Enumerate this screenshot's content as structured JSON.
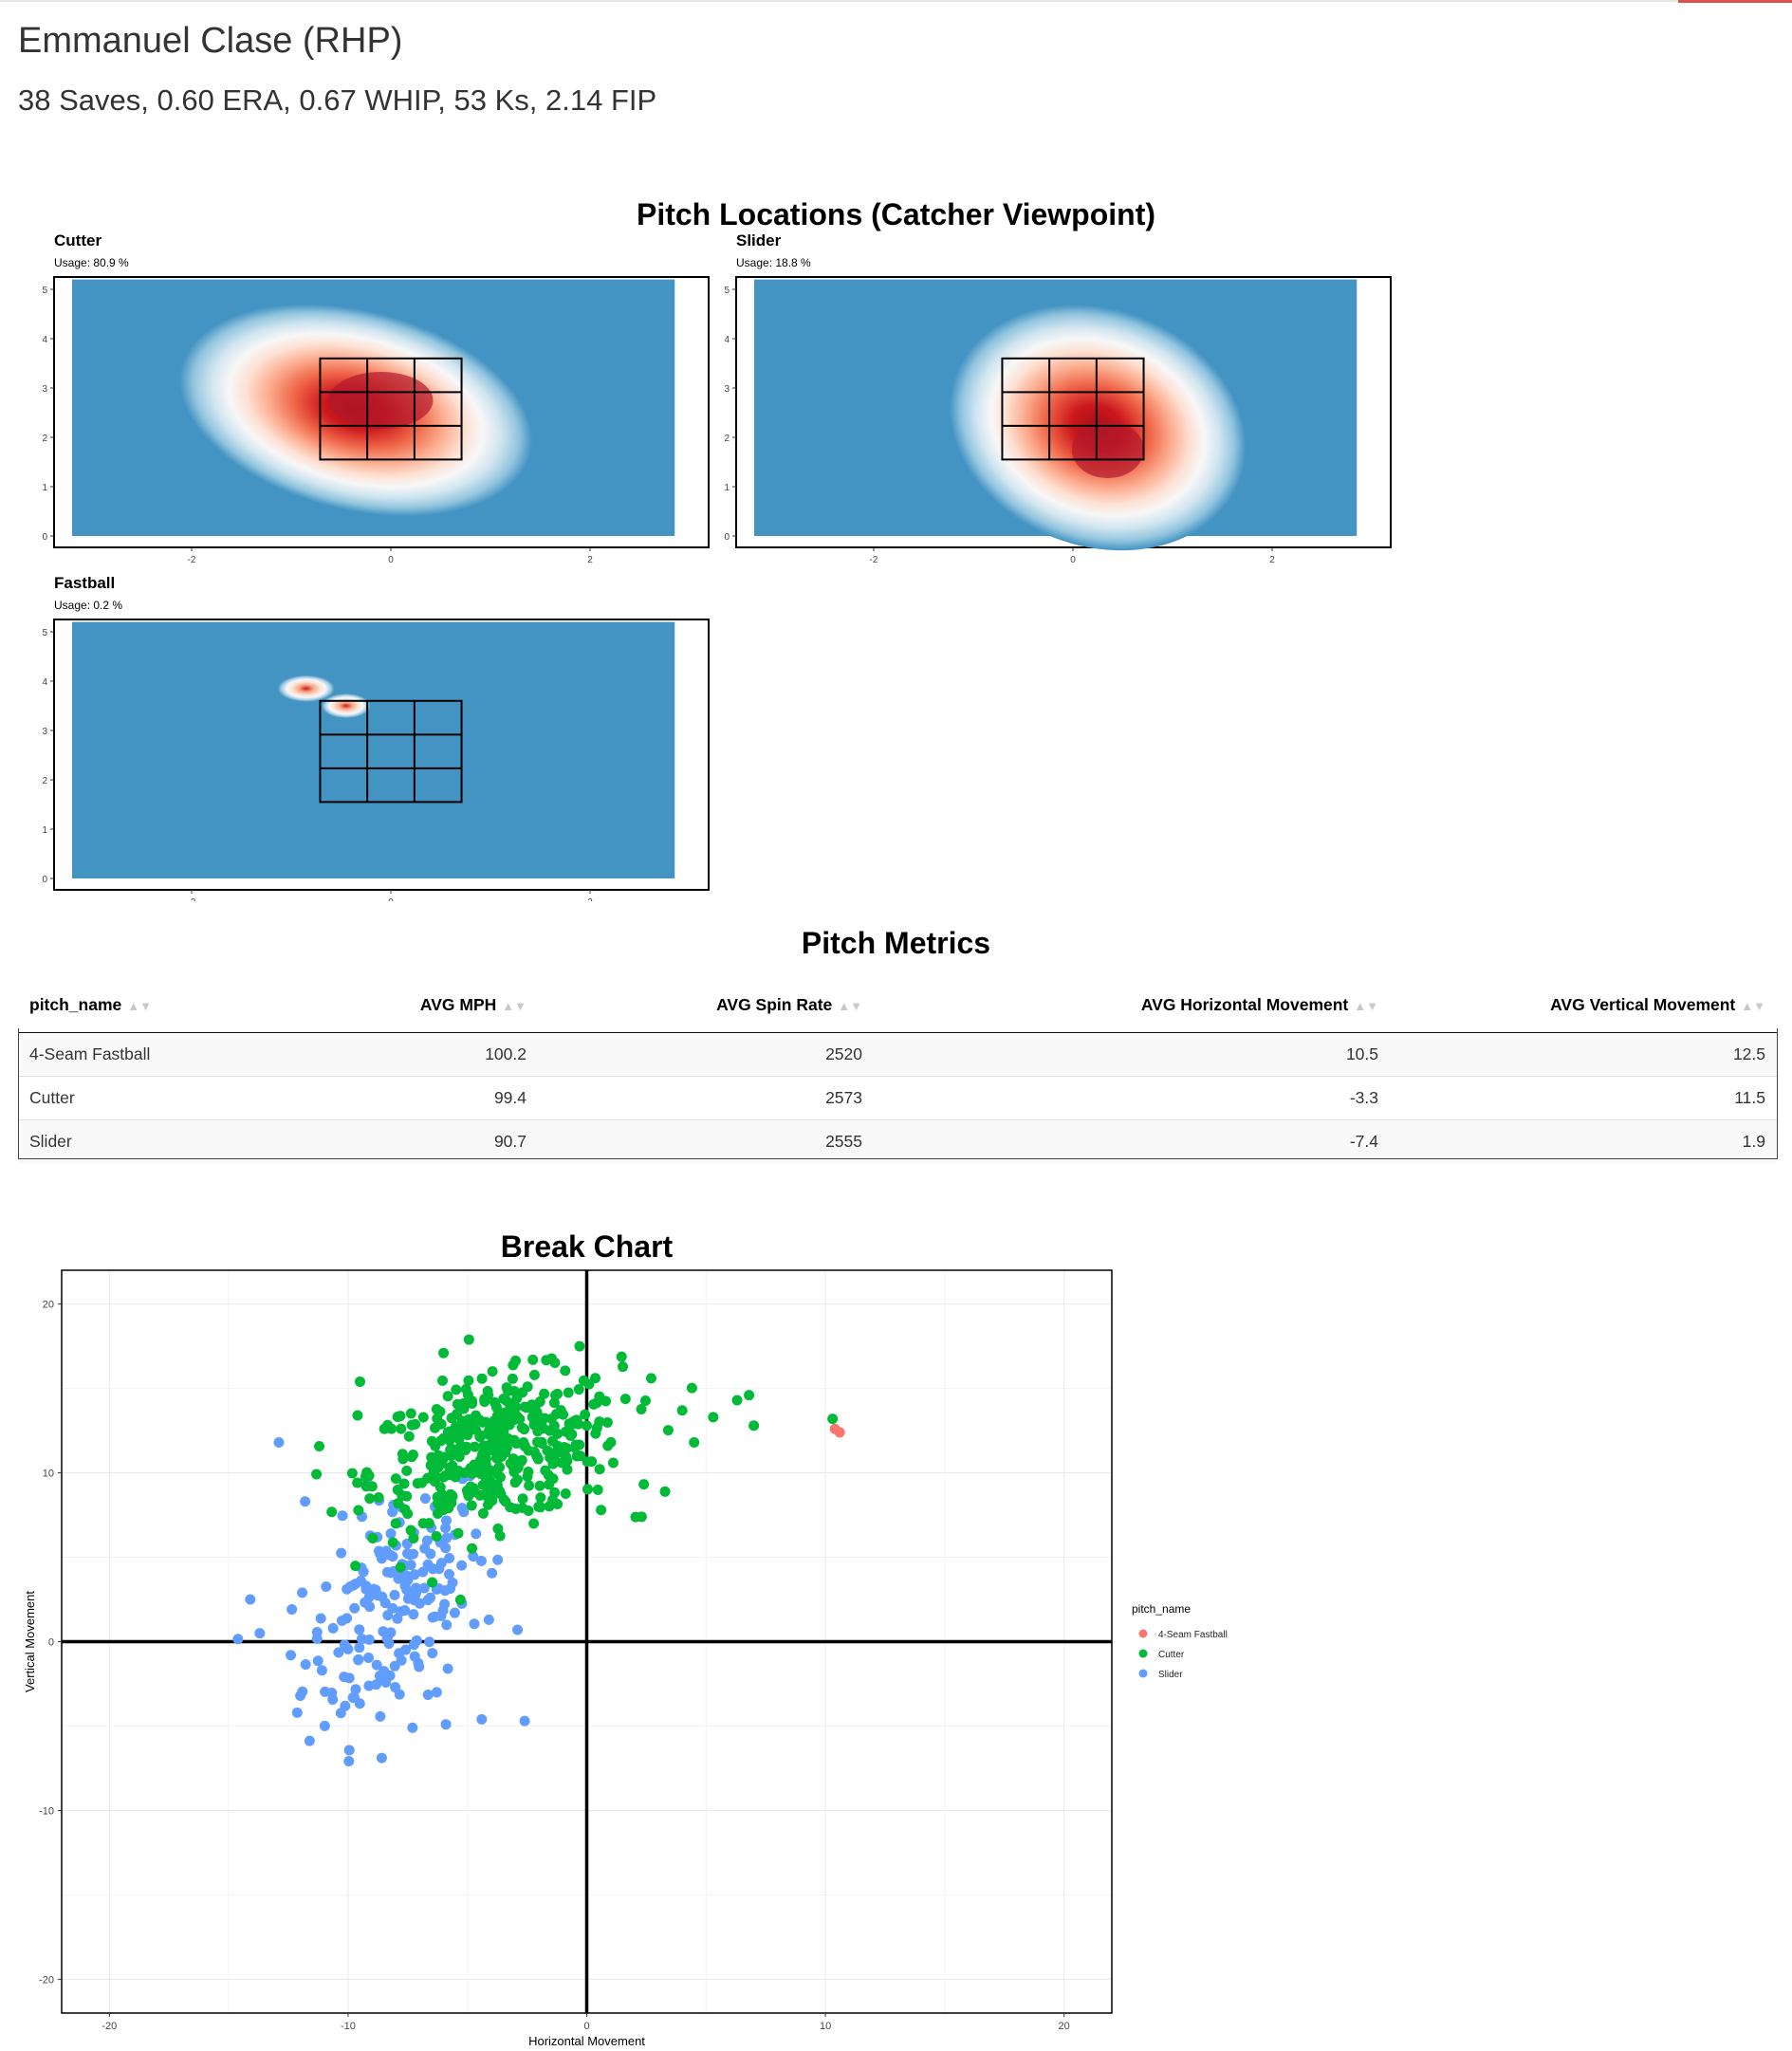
{
  "header": {
    "title": "Emmanuel Clase (RHP)",
    "subtitle": "38 Saves, 0.60 ERA, 0.67 WHIP, 53 Ks, 2.14 FIP"
  },
  "locations": {
    "title": "Pitch Locations (Catcher Viewpoint)",
    "panels": [
      {
        "name": "Cutter",
        "usage": "Usage: 80.9 %"
      },
      {
        "name": "Slider",
        "usage": "Usage: 18.8 %"
      },
      {
        "name": "Fastball",
        "usage": "Usage: 0.2 %"
      }
    ],
    "x_ticks": [
      "-2",
      "0",
      "2"
    ],
    "y_ticks": [
      "0",
      "1",
      "2",
      "3",
      "4",
      "5"
    ],
    "colors": {
      "background": "#4393c3",
      "high": "#b2182b"
    }
  },
  "metrics": {
    "title": "Pitch Metrics",
    "columns": [
      "pitch_name",
      "AVG MPH",
      "AVG Spin Rate",
      "AVG Horizontal Movement",
      "AVG Vertical Movement"
    ],
    "rows": [
      [
        "4-Seam Fastball",
        "100.2",
        "2520",
        "10.5",
        "12.5"
      ],
      [
        "Cutter",
        "99.4",
        "2573",
        "-3.3",
        "11.5"
      ],
      [
        "Slider",
        "90.7",
        "2555",
        "-7.4",
        "1.9"
      ]
    ]
  },
  "chart_data": {
    "type": "scatter",
    "title": "Break Chart",
    "xlabel": "Horizontal Movement",
    "ylabel": "Vertical Movement",
    "xlim": [
      -22,
      22
    ],
    "ylim": [
      -22,
      22
    ],
    "x_ticks": [
      -20,
      -10,
      0,
      10,
      20
    ],
    "y_ticks": [
      -20,
      -10,
      0,
      10,
      20
    ],
    "grid": true,
    "legend": {
      "title": "pitch_name",
      "position": "right"
    },
    "series": [
      {
        "name": "4-Seam Fastball",
        "color": "#f8766d",
        "points": [
          [
            10.4,
            12.6
          ],
          [
            10.6,
            12.4
          ]
        ]
      },
      {
        "name": "Cutter",
        "color": "#00ba38",
        "center": [
          -3.8,
          11.3
        ],
        "spread": [
          2.6,
          2.1
        ],
        "count": 420,
        "points": [
          [
            -9.5,
            15.4
          ],
          [
            -9.6,
            13.4
          ],
          [
            -6,
            17.1
          ],
          [
            -0.3,
            17.5
          ],
          [
            2.7,
            15.6
          ],
          [
            4.0,
            13.7
          ],
          [
            4.5,
            11.8
          ],
          [
            5.3,
            13.3
          ],
          [
            6.3,
            14.3
          ],
          [
            6.8,
            14.6
          ],
          [
            7.0,
            12.8
          ],
          [
            2.3,
            7.4
          ],
          [
            0.6,
            7.8
          ],
          [
            10.3,
            13.2
          ],
          [
            -8.0,
            7.0
          ],
          [
            -7.8,
            4.4
          ]
        ]
      },
      {
        "name": "Slider",
        "color": "#619cff",
        "center": [
          -8.0,
          2.3
        ],
        "spread": [
          1.9,
          3.3
        ],
        "count": 190,
        "points": [
          [
            -12.9,
            11.8
          ],
          [
            -11.8,
            8.3
          ],
          [
            -14.1,
            2.5
          ],
          [
            -13.7,
            0.5
          ],
          [
            -12.0,
            -3.2
          ],
          [
            -12.4,
            -0.8
          ],
          [
            -7.3,
            -5.1
          ],
          [
            -2.6,
            -4.7
          ],
          [
            -4.4,
            -4.6
          ],
          [
            -5.9,
            -4.9
          ],
          [
            -2.9,
            0.7
          ],
          [
            -4.1,
            1.3
          ],
          [
            -8.1,
            8.1
          ]
        ]
      }
    ]
  }
}
